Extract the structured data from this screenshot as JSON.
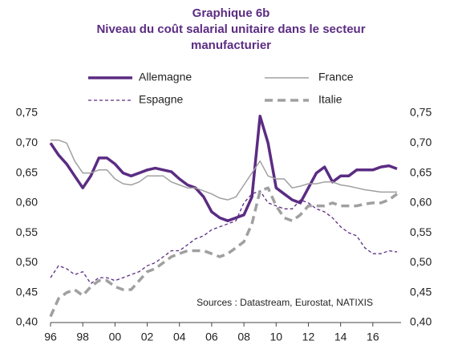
{
  "chart_data": {
    "type": "line",
    "title": "Graphique 6b",
    "subtitle": [
      "Niveau du coût salarial unitaire dans le secteur",
      "manufacturier"
    ],
    "annotation": "Sources : Datastream, Eurostat, NATIXIS",
    "x": [
      1996,
      1996.5,
      1997,
      1997.5,
      1998,
      1998.5,
      1999,
      1999.5,
      2000,
      2000.5,
      2001,
      2001.5,
      2002,
      2002.5,
      2003,
      2003.5,
      2004,
      2004.5,
      2005,
      2005.5,
      2006,
      2006.5,
      2007,
      2007.5,
      2008,
      2008.5,
      2009,
      2009.5,
      2010,
      2010.5,
      2011,
      2011.5,
      2012,
      2012.5,
      2013,
      2013.5,
      2014,
      2014.5,
      2015,
      2015.5,
      2016,
      2016.5,
      2017,
      2017.5
    ],
    "xlim": [
      1996,
      2017.75
    ],
    "xticks": [
      {
        "value": 1996,
        "label": "96"
      },
      {
        "value": 1998,
        "label": "98"
      },
      {
        "value": 2000,
        "label": "00"
      },
      {
        "value": 2002,
        "label": "02"
      },
      {
        "value": 2004,
        "label": "04"
      },
      {
        "value": 2006,
        "label": "06"
      },
      {
        "value": 2008,
        "label": "08"
      },
      {
        "value": 2010,
        "label": "10"
      },
      {
        "value": 2012,
        "label": "12"
      },
      {
        "value": 2014,
        "label": "14"
      },
      {
        "value": 2016,
        "label": "16"
      }
    ],
    "ylim": [
      0.4,
      0.75
    ],
    "yticks": [
      {
        "value": 0.4,
        "label": "0,40"
      },
      {
        "value": 0.45,
        "label": "0,45"
      },
      {
        "value": 0.5,
        "label": "0,50"
      },
      {
        "value": 0.55,
        "label": "0,55"
      },
      {
        "value": 0.6,
        "label": "0,60"
      },
      {
        "value": 0.65,
        "label": "0,65"
      },
      {
        "value": 0.7,
        "label": "0,70"
      },
      {
        "value": 0.75,
        "label": "0,75"
      }
    ],
    "y2lim": [
      0.4,
      0.75
    ],
    "y2ticks": [
      {
        "value": 0.4,
        "label": "0,40"
      },
      {
        "value": 0.45,
        "label": "0,45"
      },
      {
        "value": 0.5,
        "label": "0,50"
      },
      {
        "value": 0.55,
        "label": "0,55"
      },
      {
        "value": 0.6,
        "label": "0,60"
      },
      {
        "value": 0.65,
        "label": "0,65"
      },
      {
        "value": 0.7,
        "label": "0,70"
      },
      {
        "value": 0.75,
        "label": "0,75"
      }
    ],
    "grid": false,
    "series": [
      {
        "name": "Allemagne",
        "color": "#5b2c83",
        "line_width": 3.5,
        "line_style": "solid",
        "values": [
          0.7,
          0.68,
          0.665,
          0.645,
          0.625,
          0.645,
          0.675,
          0.675,
          0.665,
          0.65,
          0.645,
          0.65,
          0.655,
          0.658,
          0.655,
          0.652,
          0.64,
          0.63,
          0.625,
          0.61,
          0.585,
          0.575,
          0.57,
          0.575,
          0.58,
          0.61,
          0.745,
          0.7,
          0.625,
          0.615,
          0.605,
          0.6,
          0.625,
          0.65,
          0.66,
          0.635,
          0.645,
          0.645,
          0.655,
          0.655,
          0.655,
          0.66,
          0.662,
          0.657
        ]
      },
      {
        "name": "France",
        "color": "#a0a0a0",
        "line_width": 1.5,
        "line_style": "solid",
        "values": [
          0.705,
          0.705,
          0.7,
          0.67,
          0.65,
          0.65,
          0.655,
          0.655,
          0.64,
          0.632,
          0.63,
          0.635,
          0.645,
          0.645,
          0.645,
          0.635,
          0.63,
          0.625,
          0.625,
          0.62,
          0.615,
          0.608,
          0.605,
          0.61,
          0.63,
          0.65,
          0.67,
          0.645,
          0.64,
          0.64,
          0.625,
          0.628,
          0.632,
          0.632,
          0.635,
          0.635,
          0.63,
          0.628,
          0.625,
          0.622,
          0.62,
          0.618,
          0.618,
          0.618
        ]
      },
      {
        "name": "Espagne",
        "color": "#5b2c83",
        "line_width": 1.3,
        "line_style": "dashed",
        "values": [
          0.475,
          0.495,
          0.49,
          0.48,
          0.485,
          0.465,
          0.475,
          0.475,
          0.47,
          0.475,
          0.48,
          0.485,
          0.495,
          0.5,
          0.51,
          0.52,
          0.52,
          0.53,
          0.54,
          0.545,
          0.555,
          0.56,
          0.565,
          0.57,
          0.6,
          0.615,
          0.62,
          0.6,
          0.595,
          0.59,
          0.59,
          0.605,
          0.6,
          0.59,
          0.585,
          0.575,
          0.56,
          0.55,
          0.545,
          0.525,
          0.515,
          0.515,
          0.52,
          0.518
        ]
      },
      {
        "name": "Italie",
        "color": "#a0a0a0",
        "line_width": 3.5,
        "line_style": "dashed",
        "values": [
          0.41,
          0.44,
          0.45,
          0.455,
          0.445,
          0.46,
          0.47,
          0.47,
          0.46,
          0.455,
          0.455,
          0.47,
          0.485,
          0.49,
          0.5,
          0.51,
          0.515,
          0.52,
          0.52,
          0.52,
          0.515,
          0.51,
          0.515,
          0.525,
          0.535,
          0.565,
          0.62,
          0.625,
          0.595,
          0.575,
          0.57,
          0.58,
          0.595,
          0.595,
          0.595,
          0.6,
          0.595,
          0.595,
          0.595,
          0.598,
          0.6,
          0.6,
          0.605,
          0.615
        ]
      }
    ]
  }
}
